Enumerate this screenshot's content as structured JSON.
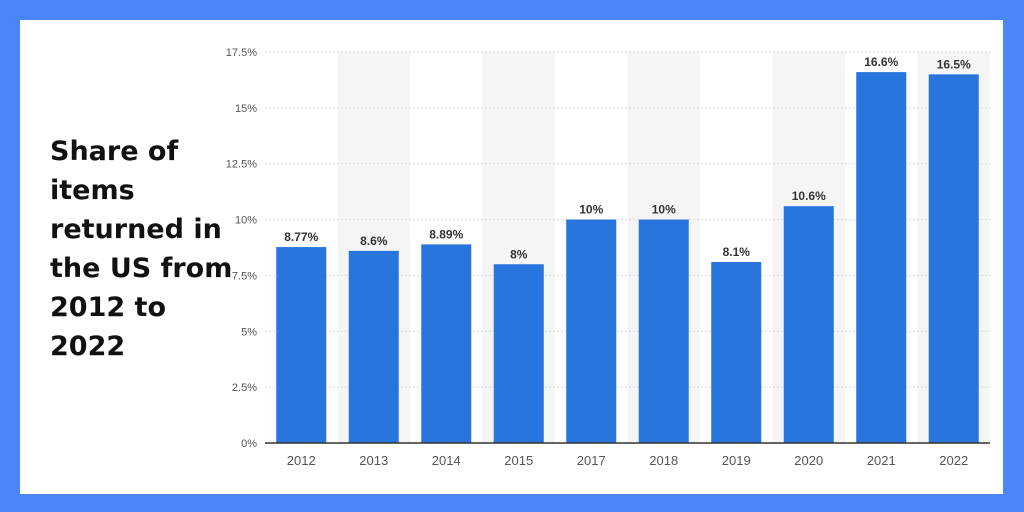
{
  "title": "Share of items returned in the US from 2012 to 2022",
  "colors": {
    "background": "#4a86f7",
    "panel": "#ffffff",
    "bar": "#2875de",
    "band": "#f5f5f5",
    "grid": "#d6d6d6",
    "label": "#333333",
    "tick": "#555555"
  },
  "chart_data": {
    "type": "bar",
    "categories": [
      "2012",
      "2013",
      "2014",
      "2015",
      "2017",
      "2018",
      "2019",
      "2020",
      "2021",
      "2022"
    ],
    "values": [
      8.77,
      8.6,
      8.89,
      8,
      10,
      10,
      8.1,
      10.6,
      16.6,
      16.5
    ],
    "value_labels": [
      "8.77%",
      "8.6%",
      "8.89%",
      "8%",
      "10%",
      "10%",
      "8.1%",
      "10.6%",
      "16.6%",
      "16.5%"
    ],
    "title": "Share of items returned in the US from 2012 to 2022",
    "xlabel": "",
    "ylabel": "",
    "ylim": [
      0,
      17.5
    ],
    "yticks": [
      0,
      2.5,
      5,
      7.5,
      10,
      12.5,
      15,
      17.5
    ],
    "ytick_labels": [
      "0%",
      "2.5%",
      "5%",
      "7.5%",
      "10%",
      "12.5%",
      "15%",
      "17.5%"
    ],
    "grid": true,
    "legend": "none"
  }
}
